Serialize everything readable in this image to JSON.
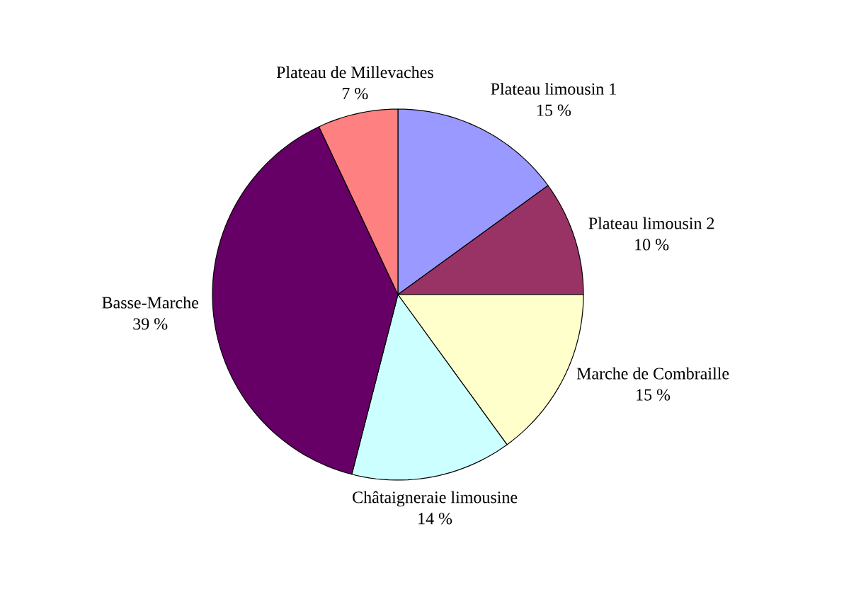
{
  "chart_data": {
    "type": "pie",
    "categories": [
      "Plateau limousin 1",
      "Plateau limousin 2",
      "Marche de Combraille",
      "Châtaigneraie limousine",
      "Basse-Marche",
      "Plateau de Millevaches"
    ],
    "values": [
      15,
      10,
      15,
      14,
      39,
      7
    ],
    "value_labels": [
      "15 %",
      "10 %",
      "15 %",
      "14 %",
      "39 %",
      "7 %"
    ],
    "colors": [
      "#9999ff",
      "#993366",
      "#ffffcc",
      "#ccffff",
      "#660066",
      "#ff8080"
    ]
  }
}
